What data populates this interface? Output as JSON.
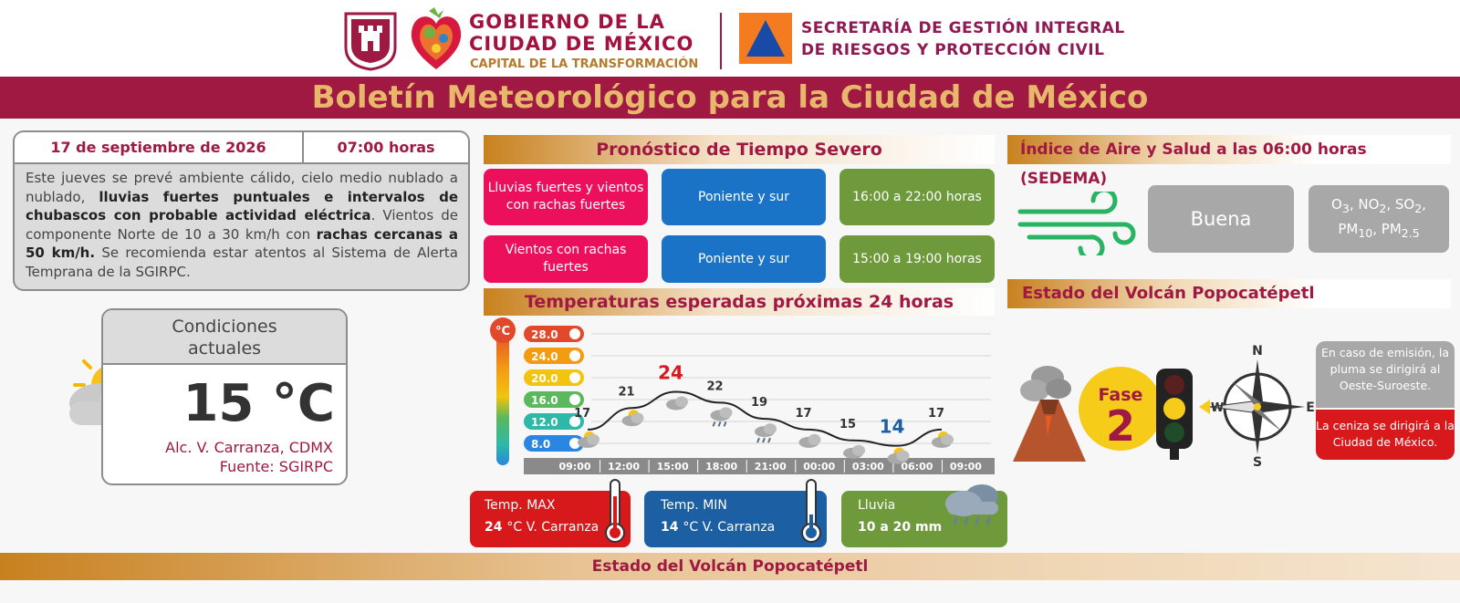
{
  "header": {
    "gov_line1": "GOBIERNO DE LA",
    "gov_line2": "CIUDAD DE MÉXICO",
    "gov_slogan": "CAPITAL DE LA TRANSFORMACIÓN",
    "sec_line1": "SECRETARÍA DE GESTIÓN INTEGRAL",
    "sec_line2": "DE RIESGOS Y PROTECCIÓN CIVIL"
  },
  "banner": {
    "title": "Boletín Meteorológico para la Ciudad de México"
  },
  "bulletin": {
    "date": "17 de septiembre de 2026",
    "time": "07:00 horas",
    "desc_1": "Este jueves se prevé ambiente cálido, cielo medio nublado a nublado, ",
    "desc_bold_1": "lluvias fuertes puntuales e intervalos de chubascos con probable actividad eléctrica",
    "desc_2": ". Vientos de componente Norte de 10 a 30 km/h con ",
    "desc_bold_2": "rachas cercanas a 50 km/h.",
    "desc_3": " Se recomienda estar atentos al Sistema de Alerta Temprana de la SGIRPC."
  },
  "current": {
    "title_1": "Condiciones",
    "title_2": "actuales",
    "temp": "15 °C",
    "location": "Alc. V. Carranza, CDMX",
    "source": "Fuente: SGIRPC"
  },
  "severe": {
    "title": "Pronóstico de Tiempo Severo",
    "rows": [
      {
        "event": "Lluvias fuertes y vientos con rachas fuertes",
        "zone": "Poniente y sur",
        "hours": "16:00 a 22:00 horas"
      },
      {
        "event": "Vientos con rachas fuertes",
        "zone": "Poniente y sur",
        "hours": "15:00 a 19:00 horas"
      }
    ]
  },
  "temps": {
    "title": "Temperaturas esperadas próximas 24 horas",
    "unit": "°C",
    "scale": [
      "28.0",
      "24.0",
      "20.0",
      "16.0",
      "12.0",
      "8.0"
    ]
  },
  "chart_data": {
    "type": "line",
    "x": [
      "09:00",
      "12:00",
      "15:00",
      "18:00",
      "21:00",
      "00:00",
      "03:00",
      "06:00",
      "09:00"
    ],
    "values": [
      17,
      21,
      24,
      22,
      19,
      17,
      15,
      14,
      17
    ],
    "ylim": [
      6,
      30
    ],
    "max_label": "24",
    "min_label": "14",
    "icons": [
      "partly-sunny",
      "partly-sunny",
      "cloudy",
      "storm",
      "rain",
      "partly-cloudy",
      "partly-cloudy",
      "partly-cloudy-night",
      "partly-sunny"
    ]
  },
  "summary": {
    "max_label": "Temp. MAX",
    "max_value": "24",
    "max_place": "°C V. Carranza",
    "min_label": "Temp. MIN",
    "min_value": "14",
    "min_place": "°C V. Carranza",
    "rain_label": "Lluvia",
    "rain_value": "10 a 20 mm"
  },
  "air": {
    "title": "Índice de Aire y Salud a las 06:00 horas (SEDEMA)",
    "quality": "Buena"
  },
  "volcano": {
    "title": "Estado del Volcán Popocatépetl",
    "fase_label": "Fase",
    "fase_num": "2",
    "plume_note": "En caso de emisión, la pluma se dirigirá al Oeste-Suroeste.",
    "ash_note": "La ceniza se dirigirá a la Ciudad de México.",
    "compass": {
      "n": "N",
      "s": "S",
      "e": "E",
      "w": "W"
    }
  },
  "footer": {
    "title": "Estado del Volcán Popocatépetl"
  },
  "colors": {
    "guinda": "#9f1943",
    "gold": "#c8811f",
    "pink": "#ec0f5b",
    "blue": "#1a73c7",
    "green": "#6e9a3c",
    "red": "#d7191c"
  }
}
